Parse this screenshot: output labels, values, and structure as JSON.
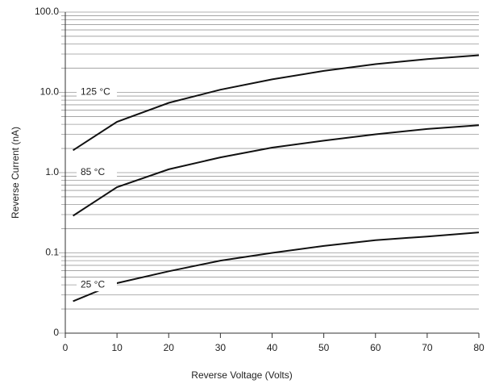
{
  "chart_data": {
    "type": "line",
    "x_label": "Reverse Voltage (Volts)",
    "y_label": "Reverse Current (nA)",
    "x": [
      1.5,
      10,
      20,
      30,
      40,
      50,
      60,
      70,
      80
    ],
    "series": [
      {
        "name": "125 °C",
        "color": "#111111",
        "values": [
          1.9,
          4.3,
          7.4,
          10.8,
          14.5,
          18.5,
          22.5,
          26,
          29
        ]
      },
      {
        "name": "85 °C",
        "color": "#111111",
        "values": [
          0.29,
          0.66,
          1.1,
          1.55,
          2.05,
          2.5,
          3.0,
          3.5,
          3.9
        ]
      },
      {
        "name": "25 °C",
        "color": "#111111",
        "values": [
          0.025,
          0.042,
          0.059,
          0.08,
          0.1,
          0.122,
          0.144,
          0.16,
          0.18
        ]
      }
    ],
    "xlim": [
      0,
      80
    ],
    "xticks": [
      0,
      10,
      20,
      30,
      40,
      50,
      60,
      70,
      80
    ],
    "ylim": [
      0.01,
      100
    ],
    "yticks": [
      {
        "value": 0.01,
        "label": "0"
      },
      0.1,
      {
        "value": 1,
        "label": "1.0"
      },
      {
        "value": 10,
        "label": "10.0"
      },
      {
        "value": 100,
        "label": "100.0"
      }
    ],
    "log_y": true,
    "grid": true,
    "minor_grid": true
  }
}
